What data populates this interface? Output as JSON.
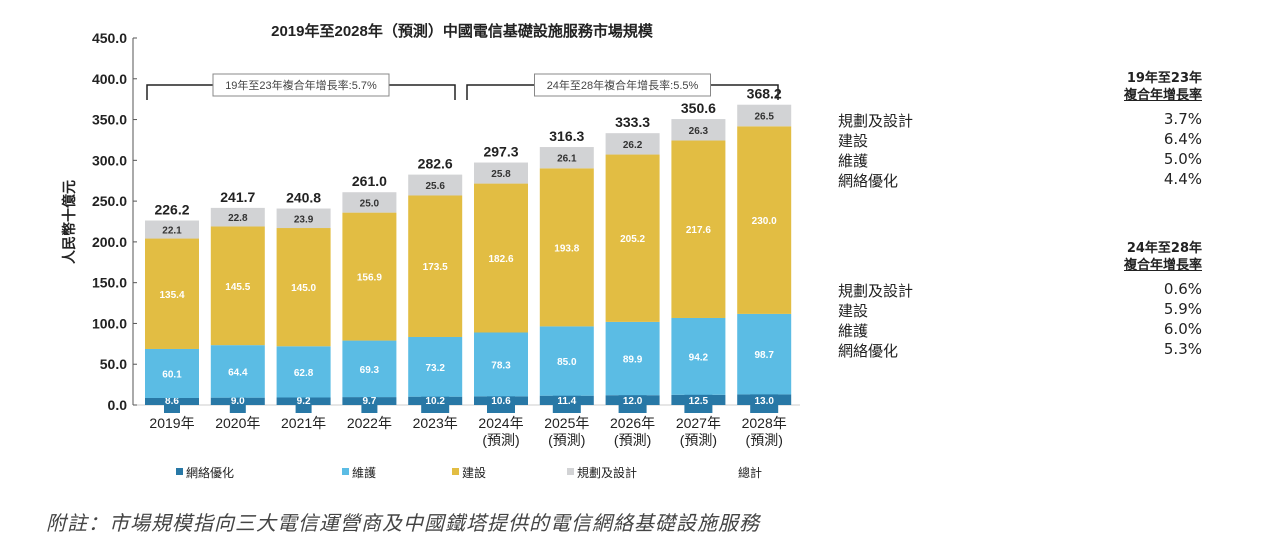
{
  "chart_data": {
    "type": "bar",
    "stacked": true,
    "title": "2019年至2028年（預測）中國電信基礎設施服務市場規模",
    "ylabel": "人民幣十億元",
    "ylim": [
      0,
      450
    ],
    "yticks": [
      "0.0",
      "50.0",
      "100.0",
      "150.0",
      "200.0",
      "250.0",
      "300.0",
      "350.0",
      "400.0",
      "450.0"
    ],
    "categories": [
      "2019年",
      "2020年",
      "2021年",
      "2022年",
      "2023年",
      "2024年\n(預測)",
      "2025年\n(預測)",
      "2026年\n(預測)",
      "2027年\n(預測)",
      "2028年\n(預測)"
    ],
    "series": [
      {
        "name": "網絡優化",
        "color": "#2878a6",
        "values": [
          8.6,
          9.0,
          9.2,
          9.7,
          10.2,
          10.6,
          11.4,
          12.0,
          12.5,
          13.0
        ]
      },
      {
        "name": "維護",
        "color": "#5bbce4",
        "values": [
          60.1,
          64.4,
          62.8,
          69.3,
          73.2,
          78.3,
          85.0,
          89.9,
          94.2,
          98.7
        ]
      },
      {
        "name": "建設",
        "color": "#e2bd43",
        "values": [
          135.4,
          145.5,
          145.0,
          156.9,
          173.5,
          182.6,
          193.8,
          205.2,
          217.6,
          230.0
        ]
      },
      {
        "name": "規劃及設計",
        "color": "#d2d3d5",
        "values": [
          22.1,
          22.8,
          23.9,
          25.0,
          25.6,
          25.8,
          26.1,
          26.2,
          26.3,
          26.5
        ]
      }
    ],
    "totals_name": "總計",
    "totals": [
      226.2,
      241.7,
      240.8,
      261.0,
      282.6,
      297.3,
      316.3,
      333.3,
      350.6,
      368.2
    ],
    "annotations": [
      "19年至23年複合年增長率:5.7%",
      "24年至28年複合年增長率:5.5%"
    ],
    "legend": "bottom"
  },
  "cagr_tables": [
    {
      "header1": "19年至23年",
      "header2": "複合年增長率",
      "rows": [
        {
          "label": "規劃及設計",
          "value": "3.7%"
        },
        {
          "label": "建設",
          "value": "6.4%"
        },
        {
          "label": "維護",
          "value": "5.0%"
        },
        {
          "label": "網絡優化",
          "value": "4.4%"
        }
      ]
    },
    {
      "header1": "24年至28年",
      "header2": "複合年增長率",
      "rows": [
        {
          "label": "規劃及設計",
          "value": "0.6%"
        },
        {
          "label": "建設",
          "value": "5.9%"
        },
        {
          "label": "維護",
          "value": "6.0%"
        },
        {
          "label": "網絡優化",
          "value": "5.3%"
        }
      ]
    }
  ],
  "note": "附註：市場規模指向三大電信運營商及中國鐵塔提供的電信網絡基礎設施服務"
}
